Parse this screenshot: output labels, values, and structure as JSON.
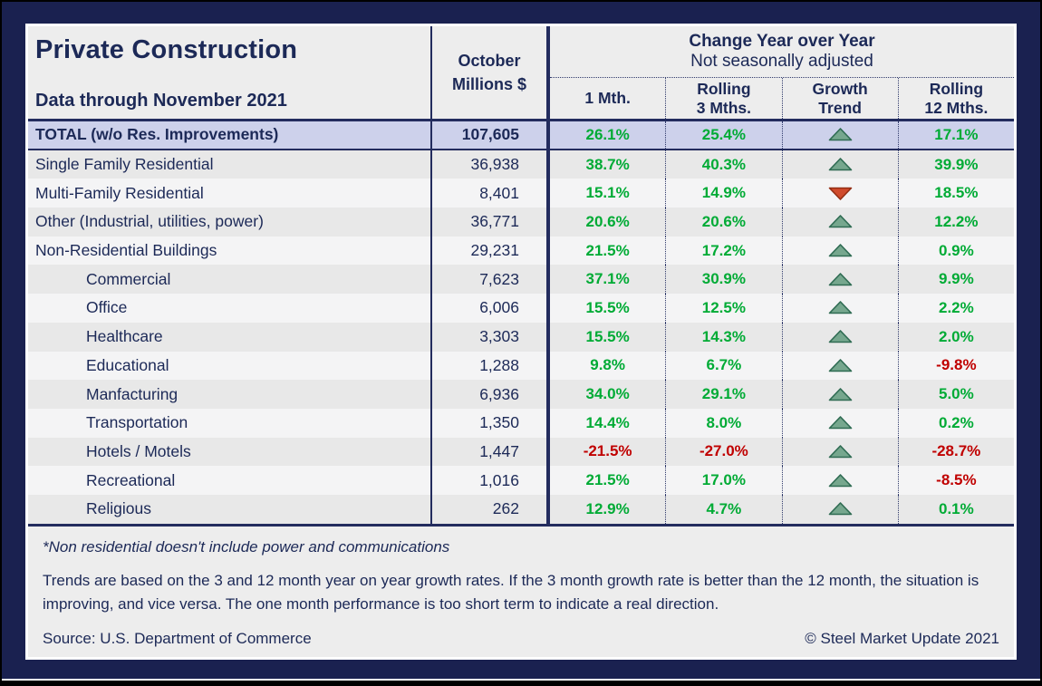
{
  "header": {
    "title": "Private Construction",
    "subtitle": "Data through November 2021",
    "value_col": [
      "October",
      "Millions $"
    ],
    "change_title": "Change Year over Year",
    "change_subtitle": "Not seasonally adjusted",
    "subcols": [
      {
        "lines": [
          "1 Mth."
        ]
      },
      {
        "lines": [
          "Rolling",
          "3 Mths."
        ]
      },
      {
        "lines": [
          "Growth",
          "Trend"
        ]
      },
      {
        "lines": [
          "Rolling",
          "12 Mths."
        ]
      }
    ]
  },
  "rows": [
    {
      "label": "TOTAL (w/o Res. Improvements)",
      "value": "107,605",
      "m1": "26.1%",
      "m3": "25.4%",
      "trend": "up",
      "m12": "17.1%",
      "total": true,
      "indent": false
    },
    {
      "label": "Single Family Residential",
      "value": "36,938",
      "m1": "38.7%",
      "m3": "40.3%",
      "trend": "up",
      "m12": "39.9%",
      "total": false,
      "indent": false
    },
    {
      "label": "Multi-Family Residential",
      "value": "8,401",
      "m1": "15.1%",
      "m3": "14.9%",
      "trend": "down",
      "m12": "18.5%",
      "total": false,
      "indent": false
    },
    {
      "label": "Other (Industrial, utilities, power)",
      "value": "36,771",
      "m1": "20.6%",
      "m3": "20.6%",
      "trend": "up",
      "m12": "12.2%",
      "total": false,
      "indent": false
    },
    {
      "label": "Non-Residential Buildings",
      "value": "29,231",
      "m1": "21.5%",
      "m3": "17.2%",
      "trend": "up",
      "m12": "0.9%",
      "total": false,
      "indent": false
    },
    {
      "label": "Commercial",
      "value": "7,623",
      "m1": "37.1%",
      "m3": "30.9%",
      "trend": "up",
      "m12": "9.9%",
      "total": false,
      "indent": true
    },
    {
      "label": "Office",
      "value": "6,006",
      "m1": "15.5%",
      "m3": "12.5%",
      "trend": "up",
      "m12": "2.2%",
      "total": false,
      "indent": true
    },
    {
      "label": "Healthcare",
      "value": "3,303",
      "m1": "15.5%",
      "m3": "14.3%",
      "trend": "up",
      "m12": "2.0%",
      "total": false,
      "indent": true
    },
    {
      "label": "Educational",
      "value": "1,288",
      "m1": "9.8%",
      "m3": "6.7%",
      "trend": "up",
      "m12": "-9.8%",
      "total": false,
      "indent": true
    },
    {
      "label": "Manfacturing",
      "value": "6,936",
      "m1": "34.0%",
      "m3": "29.1%",
      "trend": "up",
      "m12": "5.0%",
      "total": false,
      "indent": true
    },
    {
      "label": "Transportation",
      "value": "1,350",
      "m1": "14.4%",
      "m3": "8.0%",
      "trend": "up",
      "m12": "0.2%",
      "total": false,
      "indent": true
    },
    {
      "label": "Hotels / Motels",
      "value": "1,447",
      "m1": "-21.5%",
      "m3": "-27.0%",
      "trend": "up",
      "m12": "-28.7%",
      "total": false,
      "indent": true
    },
    {
      "label": "Recreational",
      "value": "1,016",
      "m1": "21.5%",
      "m3": "17.0%",
      "trend": "up",
      "m12": "-8.5%",
      "total": false,
      "indent": true
    },
    {
      "label": "Religious",
      "value": "262",
      "m1": "12.9%",
      "m3": "4.7%",
      "trend": "up",
      "m12": "0.1%",
      "total": false,
      "indent": true
    }
  ],
  "footer": {
    "note_italic": "*Non residential doesn't include power and communications",
    "note_body": "Trends are based on the 3 and 12 month year on year growth rates. If the 3 month growth rate is better than the 12 month, the situation is improving, and vice versa. The one month performance is too short term to indicate a real direction.",
    "source": "Source: U.S. Department of Commerce",
    "copyright": "© Steel Market Update 2021"
  },
  "colors": {
    "background_navy": "#1A2150",
    "table_bg": "#EDEDED",
    "total_row_bg": "#CDD1EB",
    "row_dark": "#E8E8E8",
    "row_light": "#F4F4F5",
    "text_navy": "#1C2957",
    "positive_green": "#00AB35",
    "negative_red": "#C00000",
    "up_triangle_fill": "#76A78E",
    "up_triangle_stroke": "#2E6B52",
    "down_triangle_fill": "#D04B2C",
    "down_triangle_stroke": "#932D12"
  }
}
